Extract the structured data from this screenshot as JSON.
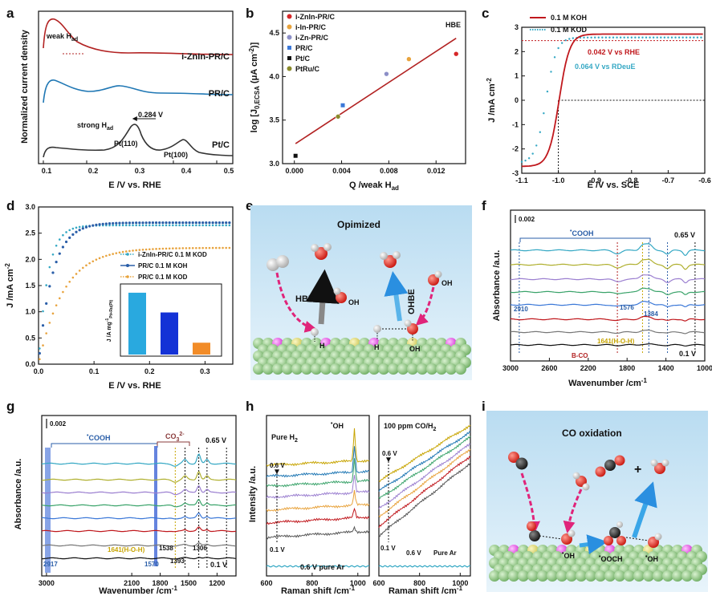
{
  "panel_letters": [
    "a",
    "b",
    "c",
    "d",
    "e",
    "f",
    "g",
    "h",
    "i"
  ],
  "chart_data": [
    {
      "id": "a",
      "type": "line",
      "xlabel": "E /V vs. RHE",
      "ylabel": "Normalized current density",
      "xlim": [
        0.05,
        0.5
      ],
      "x_ticks": [
        "0.1",
        "0.2",
        "0.3",
        "0.4",
        "0.5"
      ],
      "series": [
        {
          "name": "i-ZnIn-PR/C",
          "color": "#b22222"
        },
        {
          "name": "PR/C",
          "color": "#1f77b4"
        },
        {
          "name": "Pt/C",
          "color": "#333333"
        }
      ],
      "annotations": {
        "weak": "weak H",
        "weak_sub": "ad",
        "strong": "strong H",
        "strong_sub": "ad",
        "shift": "0.284 V",
        "pt110": "Pt(110)",
        "pt100": "Pt(100)"
      }
    },
    {
      "id": "b",
      "type": "scatter",
      "xlabel": "Q /weak H",
      "xlabel_sub": "ad",
      "ylabel": "log [J",
      "ylabel_sub": "0,ECSA",
      "ylabel_tail": " (μA cm",
      "ylabel_sup": "-2",
      "ylabel_end": ")]",
      "corner_label": "HBE",
      "xlim": [
        -0.001,
        0.0145
      ],
      "ylim": [
        3.0,
        4.75
      ],
      "x_ticks": [
        0.0,
        0.004,
        0.008,
        0.012
      ],
      "x_tick_labels": [
        "0.000",
        "0.004",
        "0.008",
        "0.012"
      ],
      "y_ticks": [
        3.0,
        3.5,
        4.0,
        4.5
      ],
      "y_tick_labels": [
        "3.0",
        "3.5",
        "4.0",
        "4.5"
      ],
      "points": [
        {
          "name": "i-ZnIn-PR/C",
          "x": 0.0137,
          "y": 4.26,
          "color": "#d62728"
        },
        {
          "name": "i-In-PR/C",
          "x": 0.0097,
          "y": 4.2,
          "color": "#e8a33d"
        },
        {
          "name": "i-Zn-PR/C",
          "x": 0.0078,
          "y": 4.03,
          "color": "#8c8fc7"
        },
        {
          "name": "PR/C",
          "x": 0.0041,
          "y": 3.67,
          "color": "#3b78d8"
        },
        {
          "name": "Pt/C",
          "x": 0.0001,
          "y": 3.09,
          "color": "#111111"
        },
        {
          "name": "PtRu/C",
          "x": 0.0037,
          "y": 3.54,
          "color": "#8a8a2a"
        }
      ],
      "fit_line": {
        "x": [
          0.0001,
          0.0137
        ],
        "y": [
          3.23,
          4.44
        ]
      }
    },
    {
      "id": "c",
      "type": "line",
      "xlabel": "E /V vs. SCE",
      "ylabel": "J /mA cm",
      "ylabel_sup": "-2",
      "xlim": [
        -1.1,
        -0.6
      ],
      "ylim": [
        -3,
        3
      ],
      "x_ticks": [
        -1.1,
        -1.0,
        -0.9,
        -0.8,
        -0.7,
        -0.6
      ],
      "x_tick_labels": [
        "-1.1",
        "-1.0",
        "-0.9",
        "-0.8",
        "-0.7",
        "-0.6"
      ],
      "y_ticks": [
        -3,
        -2,
        -1,
        0,
        1,
        2,
        3
      ],
      "y_tick_labels": [
        "-3",
        "-2",
        "-1",
        "0",
        "1",
        "2",
        "3"
      ],
      "series": [
        {
          "name": "0.1 M KOH",
          "color": "#c0181d",
          "onset": -0.998,
          "plateau": 2.72
        },
        {
          "name": "0.1 M KOD",
          "color": "#35a8c4",
          "onset": -1.034,
          "plateau": 2.58
        }
      ],
      "annotations": {
        "rhe": "0.042 V vs RHE",
        "rdeue": "0.064 V vs RDeuE"
      }
    },
    {
      "id": "d",
      "type": "line",
      "xlabel": "E /V vs. RHE",
      "ylabel": "J /mA cm",
      "ylabel_sup": "-2",
      "xlim": [
        0.0,
        0.35
      ],
      "ylim": [
        0.0,
        3.0
      ],
      "x_ticks": [
        0.0,
        0.1,
        0.2,
        0.3
      ],
      "x_tick_labels": [
        "0.0",
        "0.1",
        "0.2",
        "0.3"
      ],
      "y_ticks": [
        0.0,
        0.5,
        1.0,
        1.5,
        2.0,
        2.5,
        3.0
      ],
      "y_tick_labels": [
        "0.0",
        "0.5",
        "1.0",
        "1.5",
        "2.0",
        "2.5",
        "3.0"
      ],
      "series": [
        {
          "name": "i-ZnIn-PR/C 0.1 M KOD",
          "color": "#35a8c4",
          "plateau": 2.65
        },
        {
          "name": "PR/C 0.1 M KOH",
          "color": "#2a5ea8",
          "plateau": 2.7
        },
        {
          "name": "PR/C 0.1 M KOD",
          "color": "#e8a33d",
          "plateau": 2.22
        }
      ],
      "inset": {
        "ylabel": "J /A mg",
        "ylabel_sup": "-1",
        "ylabel_sub": "Pt+Ru(Pt)",
        "values": [
          2.35,
          1.6,
          0.45
        ],
        "colors": [
          "#29a9df",
          "#1432d6",
          "#f28c28"
        ],
        "ylim": [
          0,
          2.5
        ]
      }
    },
    {
      "id": "f",
      "type": "line",
      "xlabel": "Wavenumber /cm",
      "xlabel_sup": "-1",
      "ylabel": "Absorbance /a.u.",
      "xlim": [
        3000,
        1000
      ],
      "x_ticks": [
        3000,
        2600,
        2200,
        1800,
        1400,
        1000
      ],
      "x_tick_labels": [
        "3000",
        "2600",
        "2200",
        "1800",
        "1400",
        "1000"
      ],
      "scale": "0.002",
      "cooh": "COOH",
      "top_potential": "0.65 V",
      "bottom_potential": "0.1 V",
      "peaks": {
        "p2910": "2910",
        "p1576": "1576",
        "p1384": "1384",
        "hoh": "1641(H-O-H)",
        "bco": "B-CO"
      },
      "spectra_colors": [
        "#35a8c4",
        "#b0b030",
        "#9b7fd0",
        "#3aa36a",
        "#3b78d8",
        "#c0181d",
        "#777777",
        "#111111"
      ]
    },
    {
      "id": "g",
      "type": "line",
      "xlabel": "Wavenumber /cm",
      "xlabel_sup": "-1",
      "ylabel": "Absorbance /a.u.",
      "xlim": [
        3050,
        1000
      ],
      "x_ticks": [
        3000,
        2100,
        1800,
        1500,
        1200
      ],
      "x_tick_labels": [
        "3000",
        "2100",
        "1800",
        "1500",
        "1200"
      ],
      "scale": "0.002",
      "cooh": "COOH",
      "co3": "CO",
      "co3_sub": "3",
      "co3_sup": "2-",
      "top_potential": "0.65 V",
      "bottom_potential": "0.1 V",
      "peaks": {
        "p2917": "2917",
        "p1570": "1570",
        "hoh": "1641(H-O-H)",
        "p1538": "1538",
        "p1393": "1393",
        "p1306": "1306"
      },
      "spectra_colors": [
        "#35a8c4",
        "#b0b030",
        "#9b7fd0",
        "#3aa36a",
        "#3b78d8",
        "#c0181d",
        "#777777",
        "#111111"
      ]
    },
    {
      "id": "h1",
      "type": "line",
      "title": "Pure H",
      "title_sub": "2",
      "xlabel": "Raman shift /cm",
      "xlabel_sup": "-1",
      "ylabel": "Intensity /a.u.",
      "xlim": [
        600,
        1050
      ],
      "x_ticks": [
        600,
        800,
        1000
      ],
      "x_tick_labels": [
        "600",
        "800",
        "1000"
      ],
      "peak_label": "OH",
      "top_potential": "0.6 V",
      "bottom_potential": "0.1 V",
      "baseline_label": "0.6 V pure Ar",
      "spectra_colors": [
        "#c7a400",
        "#1f77b4",
        "#3aa36a",
        "#9b7fd0",
        "#e8a33d",
        "#c0181d",
        "#555555"
      ]
    },
    {
      "id": "h2",
      "type": "line",
      "title": "100 ppm CO/H",
      "title_sub": "2",
      "xlabel": "Raman shift /cm",
      "xlabel_sup": "-1",
      "xlim": [
        600,
        1050
      ],
      "x_ticks": [
        600,
        800,
        1000
      ],
      "x_tick_labels": [
        "600",
        "800",
        "1000"
      ],
      "top_potential": "0.6 V",
      "bottom_potential": "0.1 V",
      "baseline_v": "0.6 V",
      "baseline_ar": "Pure Ar",
      "spectra_colors": [
        "#c7a400",
        "#1f77b4",
        "#3aa36a",
        "#9b7fd0",
        "#e8a33d",
        "#c0181d",
        "#555555"
      ]
    }
  ],
  "scheme_e": {
    "title": "Opimized",
    "hbe": "HBE",
    "ohbe": "OHBE",
    "oh_ion": "OH",
    "h_ads": "H",
    "oh_ads": "OH"
  },
  "scheme_i": {
    "title": "CO oxidation",
    "plus": "+",
    "oh_ads": "OH",
    "ooch": "OOCH",
    "oh_ads2": "OH"
  },
  "colors": {
    "red": "#c0181d",
    "cyan": "#35a8c4",
    "blue": "#2a5ea8",
    "orange": "#e8a33d",
    "scheme_bg": "#cfe6f4"
  }
}
